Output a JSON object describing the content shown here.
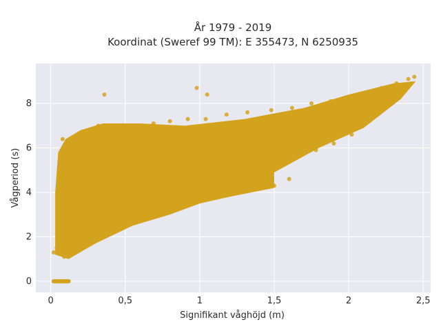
{
  "colors": {
    "plot_bg": "#e8e8f0",
    "grid": "#ffffff",
    "point": "#d4a31e",
    "text": "#2a2a2a"
  },
  "chart_data": {
    "type": "scatter",
    "title": "År 1979 - 2019",
    "subtitle": "Koordinat (Sweref 99 TM): E 355473, N 6250935",
    "xlabel": "Signifikant våghöjd (m)",
    "ylabel": "Vågperiod (s)",
    "xlim": [
      -0.1,
      2.55
    ],
    "ylim": [
      -0.5,
      9.8
    ],
    "grid": true,
    "legend": "none",
    "x_ticks": [
      {
        "value": 0,
        "label": "0"
      },
      {
        "value": 0.5,
        "label": "0,5"
      },
      {
        "value": 1,
        "label": "1"
      },
      {
        "value": 1.5,
        "label": "1,5"
      },
      {
        "value": 2,
        "label": "2"
      },
      {
        "value": 2.5,
        "label": "2,5"
      }
    ],
    "y_ticks": [
      {
        "value": 0,
        "label": "0"
      },
      {
        "value": 2,
        "label": "2"
      },
      {
        "value": 4,
        "label": "4"
      },
      {
        "value": 6,
        "label": "6"
      },
      {
        "value": 8,
        "label": "8"
      }
    ],
    "series": [
      {
        "color": "#d4a31e",
        "points": [
          {
            "x": 0.02,
            "y": 0
          },
          {
            "x": 0.04,
            "y": 0
          },
          {
            "x": 0.06,
            "y": 0
          },
          {
            "x": 0.08,
            "y": 0
          },
          {
            "x": 0.1,
            "y": 0
          },
          {
            "x": 0.12,
            "y": 0
          },
          {
            "x": 0.02,
            "y": 1.3
          },
          {
            "x": 0.04,
            "y": 1.5
          },
          {
            "x": 0.05,
            "y": 2.0
          },
          {
            "x": 0.06,
            "y": 2.8
          },
          {
            "x": 0.06,
            "y": 3.6
          },
          {
            "x": 0.07,
            "y": 4.5
          },
          {
            "x": 0.07,
            "y": 5.3
          },
          {
            "x": 0.08,
            "y": 5.9
          },
          {
            "x": 0.08,
            "y": 6.4
          },
          {
            "x": 0.09,
            "y": 1.1
          },
          {
            "x": 0.1,
            "y": 1.6
          },
          {
            "x": 0.1,
            "y": 2.5
          },
          {
            "x": 0.1,
            "y": 3.2
          },
          {
            "x": 0.11,
            "y": 4.0
          },
          {
            "x": 0.12,
            "y": 4.8
          },
          {
            "x": 0.12,
            "y": 5.6
          },
          {
            "x": 0.13,
            "y": 6.2
          },
          {
            "x": 0.14,
            "y": 1.4
          },
          {
            "x": 0.15,
            "y": 2.0
          },
          {
            "x": 0.15,
            "y": 3.0
          },
          {
            "x": 0.16,
            "y": 3.8
          },
          {
            "x": 0.17,
            "y": 4.6
          },
          {
            "x": 0.17,
            "y": 5.4
          },
          {
            "x": 0.18,
            "y": 6.1
          },
          {
            "x": 0.19,
            "y": 6.6
          },
          {
            "x": 0.2,
            "y": 1.7
          },
          {
            "x": 0.2,
            "y": 2.4
          },
          {
            "x": 0.21,
            "y": 3.4
          },
          {
            "x": 0.22,
            "y": 4.3
          },
          {
            "x": 0.23,
            "y": 5.1
          },
          {
            "x": 0.24,
            "y": 5.9
          },
          {
            "x": 0.25,
            "y": 6.7
          },
          {
            "x": 0.26,
            "y": 2.0
          },
          {
            "x": 0.27,
            "y": 2.7
          },
          {
            "x": 0.28,
            "y": 3.6
          },
          {
            "x": 0.29,
            "y": 4.6
          },
          {
            "x": 0.3,
            "y": 5.5
          },
          {
            "x": 0.31,
            "y": 6.3
          },
          {
            "x": 0.32,
            "y": 7.0
          },
          {
            "x": 0.34,
            "y": 2.3
          },
          {
            "x": 0.35,
            "y": 3.0
          },
          {
            "x": 0.36,
            "y": 3.9
          },
          {
            "x": 0.37,
            "y": 4.8
          },
          {
            "x": 0.38,
            "y": 5.7
          },
          {
            "x": 0.39,
            "y": 6.5
          },
          {
            "x": 0.36,
            "y": 8.4
          },
          {
            "x": 0.41,
            "y": 2.5
          },
          {
            "x": 0.42,
            "y": 3.3
          },
          {
            "x": 0.44,
            "y": 4.2
          },
          {
            "x": 0.45,
            "y": 5.1
          },
          {
            "x": 0.46,
            "y": 6.0
          },
          {
            "x": 0.48,
            "y": 6.8
          },
          {
            "x": 0.5,
            "y": 2.7
          },
          {
            "x": 0.52,
            "y": 3.5
          },
          {
            "x": 0.53,
            "y": 4.4
          },
          {
            "x": 0.55,
            "y": 5.3
          },
          {
            "x": 0.56,
            "y": 6.2
          },
          {
            "x": 0.58,
            "y": 7.0
          },
          {
            "x": 0.6,
            "y": 2.9
          },
          {
            "x": 0.62,
            "y": 3.7
          },
          {
            "x": 0.63,
            "y": 4.6
          },
          {
            "x": 0.65,
            "y": 5.5
          },
          {
            "x": 0.67,
            "y": 6.3
          },
          {
            "x": 0.69,
            "y": 7.1
          },
          {
            "x": 0.7,
            "y": 3.1
          },
          {
            "x": 0.72,
            "y": 3.9
          },
          {
            "x": 0.74,
            "y": 4.8
          },
          {
            "x": 0.76,
            "y": 5.6
          },
          {
            "x": 0.78,
            "y": 6.4
          },
          {
            "x": 0.8,
            "y": 7.2
          },
          {
            "x": 0.82,
            "y": 3.3
          },
          {
            "x": 0.84,
            "y": 4.2
          },
          {
            "x": 0.86,
            "y": 5.0
          },
          {
            "x": 0.88,
            "y": 5.8
          },
          {
            "x": 0.9,
            "y": 6.6
          },
          {
            "x": 0.92,
            "y": 7.3
          },
          {
            "x": 0.94,
            "y": 3.5
          },
          {
            "x": 0.96,
            "y": 4.4
          },
          {
            "x": 0.98,
            "y": 5.2
          },
          {
            "x": 1.0,
            "y": 6.0
          },
          {
            "x": 1.02,
            "y": 6.7
          },
          {
            "x": 1.04,
            "y": 7.3
          },
          {
            "x": 0.98,
            "y": 8.7
          },
          {
            "x": 1.05,
            "y": 8.4
          },
          {
            "x": 1.06,
            "y": 3.7
          },
          {
            "x": 1.1,
            "y": 4.6
          },
          {
            "x": 1.12,
            "y": 5.4
          },
          {
            "x": 1.14,
            "y": 6.2
          },
          {
            "x": 1.16,
            "y": 6.9
          },
          {
            "x": 1.18,
            "y": 7.5
          },
          {
            "x": 1.2,
            "y": 3.9
          },
          {
            "x": 1.22,
            "y": 4.8
          },
          {
            "x": 1.25,
            "y": 5.6
          },
          {
            "x": 1.27,
            "y": 6.3
          },
          {
            "x": 1.3,
            "y": 7.0
          },
          {
            "x": 1.32,
            "y": 7.6
          },
          {
            "x": 1.35,
            "y": 4.2
          },
          {
            "x": 1.38,
            "y": 5.0
          },
          {
            "x": 1.4,
            "y": 5.8
          },
          {
            "x": 1.42,
            "y": 6.5
          },
          {
            "x": 1.45,
            "y": 7.1
          },
          {
            "x": 1.48,
            "y": 7.7
          },
          {
            "x": 1.5,
            "y": 4.3
          },
          {
            "x": 1.52,
            "y": 5.3
          },
          {
            "x": 1.55,
            "y": 6.0
          },
          {
            "x": 1.58,
            "y": 6.7
          },
          {
            "x": 1.6,
            "y": 7.3
          },
          {
            "x": 1.62,
            "y": 7.8
          },
          {
            "x": 1.6,
            "y": 4.6
          },
          {
            "x": 1.65,
            "y": 5.6
          },
          {
            "x": 1.68,
            "y": 6.3
          },
          {
            "x": 1.7,
            "y": 6.9
          },
          {
            "x": 1.72,
            "y": 7.4
          },
          {
            "x": 1.75,
            "y": 8.0
          },
          {
            "x": 1.78,
            "y": 5.9
          },
          {
            "x": 1.8,
            "y": 6.5
          },
          {
            "x": 1.82,
            "y": 7.1
          },
          {
            "x": 1.85,
            "y": 7.6
          },
          {
            "x": 1.88,
            "y": 8.1
          },
          {
            "x": 1.9,
            "y": 6.2
          },
          {
            "x": 1.92,
            "y": 6.8
          },
          {
            "x": 1.95,
            "y": 7.3
          },
          {
            "x": 1.98,
            "y": 7.8
          },
          {
            "x": 2.0,
            "y": 8.3
          },
          {
            "x": 2.02,
            "y": 6.6
          },
          {
            "x": 2.05,
            "y": 7.1
          },
          {
            "x": 2.08,
            "y": 7.6
          },
          {
            "x": 2.1,
            "y": 8.1
          },
          {
            "x": 2.12,
            "y": 8.5
          },
          {
            "x": 2.15,
            "y": 7.4
          },
          {
            "x": 2.18,
            "y": 7.9
          },
          {
            "x": 2.2,
            "y": 8.3
          },
          {
            "x": 2.22,
            "y": 8.7
          },
          {
            "x": 2.25,
            "y": 7.8
          },
          {
            "x": 2.28,
            "y": 8.2
          },
          {
            "x": 2.3,
            "y": 8.6
          },
          {
            "x": 2.32,
            "y": 8.9
          },
          {
            "x": 2.35,
            "y": 8.4
          },
          {
            "x": 2.38,
            "y": 8.8
          },
          {
            "x": 2.4,
            "y": 9.1
          },
          {
            "x": 2.42,
            "y": 8.9
          },
          {
            "x": 2.44,
            "y": 9.2
          }
        ]
      }
    ]
  }
}
